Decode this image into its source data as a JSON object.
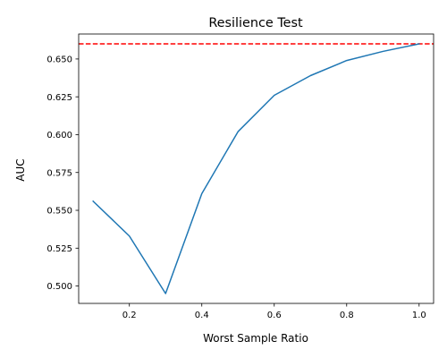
{
  "chart_data": {
    "type": "line",
    "title": "Resilience Test",
    "xlabel": "Worst Sample Ratio",
    "ylabel": "AUC",
    "xlim": [
      0.06,
      1.04
    ],
    "ylim": [
      0.4885,
      0.6665
    ],
    "x_ticks": [
      0.2,
      0.4,
      0.6,
      0.8,
      1.0
    ],
    "x_tick_labels": [
      "0.2",
      "0.4",
      "0.6",
      "0.8",
      "1.0"
    ],
    "y_ticks": [
      0.5,
      0.525,
      0.55,
      0.575,
      0.6,
      0.625,
      0.65
    ],
    "y_tick_labels": [
      "0.500",
      "0.525",
      "0.550",
      "0.575",
      "0.600",
      "0.625",
      "0.650"
    ],
    "grid": false,
    "series": [
      {
        "x": [
          0.1,
          0.2,
          0.3,
          0.4,
          0.5,
          0.6,
          0.7,
          0.8,
          0.9,
          1.0
        ],
        "y": [
          0.556,
          0.533,
          0.495,
          0.561,
          0.602,
          0.626,
          0.639,
          0.649,
          0.655,
          0.66
        ],
        "color": "#1f77b4",
        "style": "solid"
      }
    ],
    "reference_lines": [
      {
        "orientation": "horizontal",
        "y": 0.66,
        "color": "#ff0000",
        "style": "dashed"
      }
    ]
  }
}
